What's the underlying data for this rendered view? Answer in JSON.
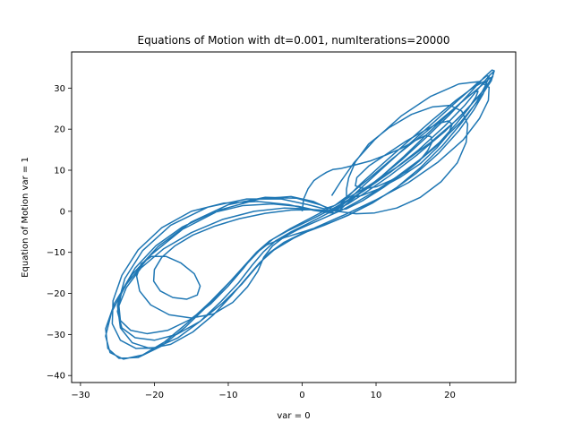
{
  "chart_data": {
    "type": "line",
    "title": "Equations of Motion with dt=0.001, numIterations=20000",
    "xlabel": "var = 0",
    "ylabel": "Equation of Motion var = 1",
    "xlim": [
      -31.2,
      28.9
    ],
    "ylim": [
      -41.7,
      38.8
    ],
    "xticks": [
      -30,
      -20,
      -10,
      0,
      10,
      20
    ],
    "yticks": [
      -40,
      -30,
      -20,
      -10,
      0,
      10,
      20,
      30
    ],
    "grid": false,
    "color": "#1f77b4",
    "series": [
      {
        "x": [
          0.0,
          0.2,
          0.8,
          1.6,
          2.4,
          3.3,
          4.2,
          5.2,
          6.1,
          7.4,
          9.3,
          11.2,
          13.5,
          15.3,
          16.6,
          17.4,
          17.6,
          17.0,
          15.9,
          14.2,
          12.1,
          10.1,
          8.4,
          7.2,
          7.4,
          9.0,
          11.5,
          14.0,
          16.5,
          18.4,
          19.8,
          20.3,
          19.8,
          18.2,
          16.0,
          13.2,
          10.3,
          8.0,
          6.6,
          6.0,
          6.0,
          6.3,
          7.2,
          9.0,
          11.8,
          14.8,
          17.6,
          20.0,
          21.6,
          22.4,
          22.2,
          21.0,
          18.8,
          16.0,
          12.8,
          9.8,
          7.3,
          5.6,
          3.9,
          1.5,
          -1.5,
          -5.0,
          -8.5,
          -11.8,
          -14.8,
          -17.2,
          -19.0,
          -20.0,
          -20.1,
          -19.2,
          -17.5,
          -15.6,
          -14.2,
          -13.8,
          -14.6,
          -16.4,
          -18.4,
          -20.4,
          -21.8,
          -22.4,
          -22.0,
          -20.5,
          -18.0,
          -15.0,
          -12.0,
          -9.4,
          -7.4,
          -6.0,
          -5.2,
          -4.0,
          -2.4,
          -0.5,
          1.5,
          3.5,
          5.5,
          7.5,
          10.0,
          12.8,
          15.8,
          18.6,
          20.8,
          22.5,
          23.5,
          23.8,
          23.2,
          21.8,
          19.6,
          16.8,
          13.8,
          10.8,
          8.0,
          6.0,
          5.0,
          4.4,
          3.0,
          0.8,
          -2.4,
          -6.5,
          -10.8,
          -15.0,
          -18.8,
          -21.8,
          -23.8,
          -24.8,
          -24.6,
          -23.2,
          -21.0,
          -18.2,
          -15.2,
          -12.4,
          -10.0,
          -8.0,
          -6.5,
          -4.8,
          -2.4,
          0.5,
          3.5,
          6.4,
          9.2,
          12.2,
          15.4,
          18.5,
          21.2,
          23.2,
          24.5,
          25.0,
          24.6,
          23.2,
          20.8,
          17.6,
          14.2,
          10.8,
          8.0,
          6.0,
          4.8,
          3.8,
          2.0,
          -0.5,
          -4.0,
          -8.0,
          -12.2,
          -16.2,
          -19.8,
          -22.6,
          -24.4,
          -25.0,
          -24.4,
          -22.6,
          -20.0,
          -17.0,
          -13.8,
          -10.8,
          -8.2,
          -6.2,
          -4.5,
          -2.5,
          0.0,
          3.0,
          6.2,
          9.5,
          12.8,
          16.0,
          19.0,
          21.6,
          23.6,
          24.8,
          25.3,
          25.0,
          23.6,
          21.2,
          18.0,
          14.5,
          11.2,
          8.4,
          6.4,
          5.0,
          3.8,
          1.6,
          -1.8,
          -6.0,
          -10.6,
          -15.0,
          -19.0,
          -22.2,
          -24.4,
          -25.6,
          -25.7,
          -24.6,
          -22.5,
          -19.8,
          -16.8,
          -13.8,
          -11.0,
          -8.6,
          -6.8,
          -5.2,
          -3.6,
          -1.5,
          1.0,
          3.8,
          6.8,
          10.0,
          13.4,
          16.8,
          20.0,
          22.6,
          24.5,
          25.7,
          26.0,
          25.6,
          24.0,
          21.4,
          18.0,
          14.4,
          11.0,
          8.2,
          6.0,
          4.4,
          2.4,
          -0.8,
          -5.0,
          -10.0,
          -15.0,
          -19.5,
          -23.0,
          -25.4,
          -26.6,
          -26.3,
          -24.8,
          -22.2,
          -19.0,
          -15.8,
          -12.8,
          -10.2,
          -8.0,
          -6.2,
          -4.4,
          -2.0,
          1.0,
          4.5,
          8.2,
          12.0,
          15.8,
          19.2,
          22.0,
          24.0,
          25.3,
          25.9,
          25.8,
          24.8,
          22.6,
          19.4,
          15.6,
          11.8,
          8.6,
          6.2,
          4.6,
          3.4,
          1.5,
          -1.5,
          -5.8,
          -11.0,
          -16.2,
          -20.6,
          -23.8,
          -25.8,
          -26.6,
          -26.0,
          -24.2,
          -21.6,
          -18.6,
          -15.4,
          -12.4,
          -9.8,
          -7.6,
          -5.8,
          -4.0,
          -1.6,
          1.4,
          5.0,
          9.0,
          13.2,
          17.4,
          21.0,
          23.6,
          25.2,
          25.8,
          25.4,
          23.6,
          20.4,
          16.4,
          12.2,
          8.8,
          6.2,
          4.4,
          3.0,
          0.8,
          -2.8,
          -7.5,
          -12.8,
          -17.8,
          -21.6,
          -24.0,
          -25.0,
          -24.6,
          -23.0,
          -20.6,
          -17.8,
          -14.8,
          -12.0,
          -9.6,
          -7.6,
          -5.8,
          -3.8,
          -1.2,
          2.0,
          5.8,
          10.0,
          14.4,
          18.4,
          21.8,
          24.0,
          25.2,
          25.3,
          24.0,
          21.2,
          17.4,
          13.4,
          9.8,
          7.0,
          5.2,
          4.0
        ],
        "y": [
          0.0,
          3.0,
          5.5,
          7.5,
          8.5,
          9.5,
          10.2,
          10.4,
          10.8,
          11.4,
          12.3,
          13.6,
          15.4,
          17.2,
          18.4,
          18.2,
          16.9,
          14.8,
          12.3,
          9.8,
          7.6,
          6.0,
          5.5,
          6.2,
          8.2,
          11.0,
          14.0,
          17.0,
          19.6,
          21.4,
          22.0,
          21.2,
          18.8,
          15.4,
          11.6,
          8.2,
          5.4,
          3.8,
          3.4,
          3.8,
          5.4,
          8.2,
          12.0,
          16.4,
          20.4,
          23.6,
          25.4,
          25.8,
          24.4,
          21.2,
          16.8,
          11.8,
          7.2,
          3.4,
          0.8,
          -0.4,
          -0.6,
          -0.2,
          0.2,
          0.4,
          0.3,
          -0.5,
          -1.8,
          -3.6,
          -5.8,
          -8.4,
          -11.2,
          -14.2,
          -17.0,
          -19.4,
          -21.0,
          -21.4,
          -20.4,
          -18.2,
          -15.2,
          -12.6,
          -11.0,
          -11.0,
          -12.8,
          -15.8,
          -19.4,
          -22.8,
          -25.2,
          -26.0,
          -25.0,
          -22.2,
          -18.4,
          -14.6,
          -11.2,
          -8.4,
          -6.2,
          -4.4,
          -2.8,
          -1.2,
          0.4,
          2.4,
          5.0,
          8.4,
          12.4,
          16.8,
          21.2,
          25.0,
          27.8,
          29.2,
          29.0,
          27.0,
          23.4,
          18.6,
          13.4,
          8.6,
          4.6,
          1.8,
          0.2,
          -0.4,
          -0.2,
          0.6,
          0.8,
          0.0,
          -2.0,
          -5.2,
          -9.2,
          -13.8,
          -18.6,
          -23.0,
          -26.6,
          -29.0,
          -29.8,
          -29.0,
          -26.4,
          -22.6,
          -18.2,
          -14.0,
          -10.6,
          -8.2,
          -6.4,
          -4.8,
          -3.0,
          -0.8,
          1.8,
          5.0,
          9.2,
          14.2,
          19.6,
          24.6,
          28.6,
          31.0,
          31.6,
          30.2,
          27.0,
          22.2,
          16.8,
          11.4,
          6.8,
          3.2,
          1.0,
          0.0,
          0.2,
          1.2,
          1.8,
          1.4,
          -0.4,
          -3.8,
          -8.4,
          -13.8,
          -19.4,
          -24.4,
          -28.4,
          -30.8,
          -31.4,
          -30.0,
          -26.8,
          -22.4,
          -17.8,
          -13.6,
          -10.2,
          -7.6,
          -5.4,
          -3.4,
          -1.0,
          2.0,
          5.8,
          10.6,
          16.0,
          21.6,
          26.6,
          30.6,
          32.8,
          33.0,
          31.0,
          27.2,
          22.0,
          16.4,
          11.0,
          6.4,
          3.0,
          0.8,
          -0.4,
          0.2,
          1.6,
          2.4,
          2.0,
          0.0,
          -4.0,
          -9.4,
          -15.6,
          -21.8,
          -27.4,
          -31.4,
          -33.4,
          -33.2,
          -30.8,
          -26.8,
          -22.0,
          -17.4,
          -13.2,
          -9.8,
          -7.2,
          -5.0,
          -2.8,
          -0.2,
          3.2,
          7.4,
          12.4,
          18.0,
          23.6,
          28.6,
          32.4,
          34.4,
          34.2,
          31.8,
          27.4,
          21.6,
          15.6,
          10.2,
          5.8,
          2.6,
          0.6,
          0.2,
          1.6,
          3.2,
          3.4,
          1.6,
          -2.6,
          -8.6,
          -15.4,
          -22.4,
          -28.6,
          -33.4,
          -35.8,
          -35.6,
          -32.8,
          -28.2,
          -23.0,
          -18.0,
          -13.6,
          -10.0,
          -7.2,
          -4.8,
          -2.2,
          1.0,
          4.8,
          9.6,
          15.0,
          20.6,
          25.8,
          30.2,
          33.0,
          34.0,
          33.0,
          30.0,
          25.4,
          19.6,
          13.8,
          8.6,
          4.6,
          1.8,
          0.4,
          0.8,
          2.4,
          3.6,
          3.0,
          0.4,
          -4.4,
          -10.8,
          -17.8,
          -24.6,
          -30.4,
          -34.4,
          -36.0,
          -35.0,
          -31.8,
          -27.0,
          -22.0,
          -17.2,
          -13.0,
          -9.6,
          -6.8,
          -4.2,
          -1.4,
          2.0,
          6.2,
          11.2,
          16.8,
          22.4,
          27.4,
          31.0,
          32.8,
          32.4,
          29.6,
          24.8,
          18.8,
          12.8,
          7.6,
          3.8,
          1.4,
          0.6,
          1.6,
          3.0,
          3.0,
          1.0,
          -3.4,
          -9.6,
          -16.4,
          -23.0,
          -28.4,
          -32.0,
          -33.4,
          -32.4,
          -29.4,
          -25.2,
          -20.6,
          -16.4,
          -12.6,
          -9.4,
          -6.6,
          -3.8,
          -0.8,
          2.8,
          7.0,
          12.0,
          17.4,
          22.6,
          27.0,
          30.2,
          31.6,
          31.0,
          28.0,
          23.2,
          17.4,
          11.8,
          7.2,
          3.8
        ]
      }
    ]
  }
}
